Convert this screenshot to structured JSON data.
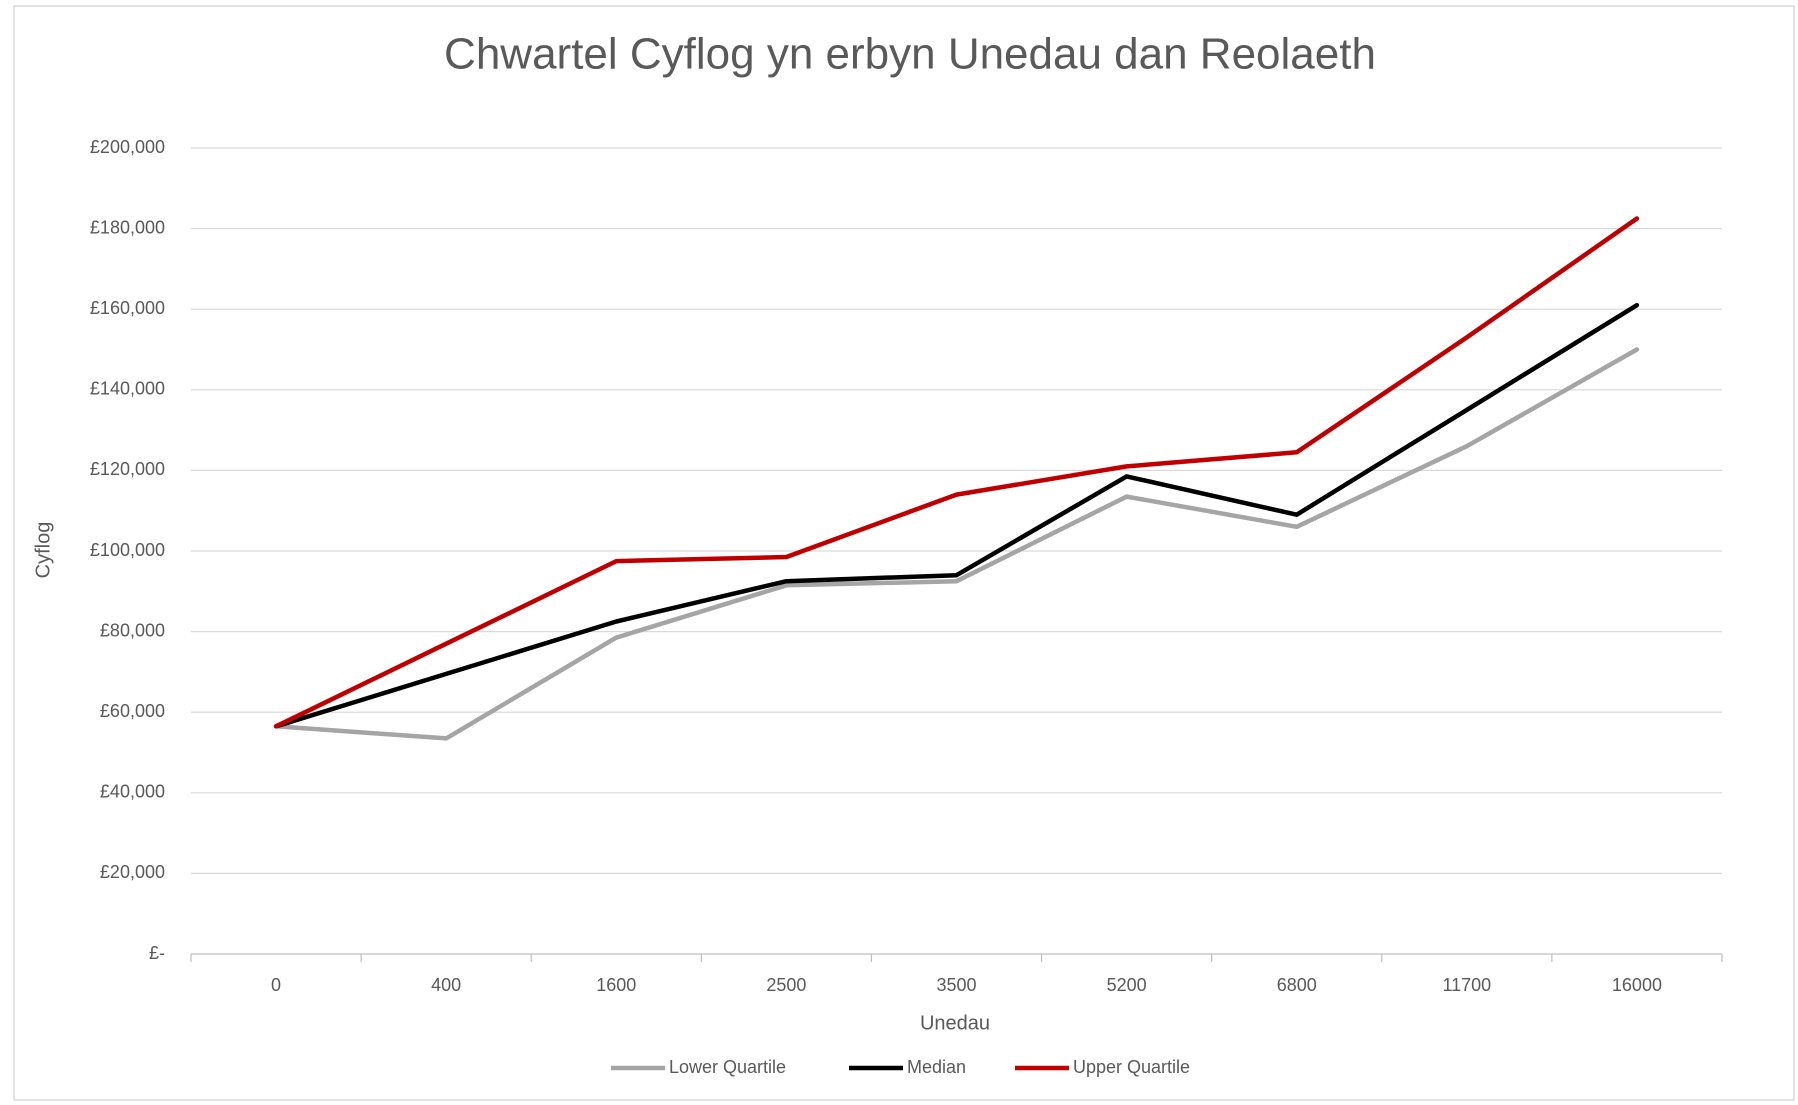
{
  "chart_data": {
    "type": "line",
    "title": "Chwartel Cyflog yn erbyn Unedau dan Reolaeth",
    "x_label": "Unedau",
    "y_label": "Cyflog",
    "categories": [
      "0",
      "400",
      "1600",
      "2500",
      "3500",
      "5200",
      "6800",
      "11700",
      "16000"
    ],
    "series": [
      {
        "name": "Lower Quartile",
        "color": "#a5a5a5",
        "values": [
          56500,
          53500,
          78500,
          91500,
          92500,
          113500,
          106000,
          126000,
          150000
        ]
      },
      {
        "name": "Median",
        "color": "#000000",
        "values": [
          56500,
          69500,
          82500,
          92500,
          94000,
          118500,
          109000,
          135000,
          161000
        ]
      },
      {
        "name": "Upper Quartile",
        "color": "#c00000",
        "values": [
          56500,
          77000,
          97500,
          98500,
          114000,
          121000,
          124500,
          153000,
          182500
        ]
      }
    ],
    "ylim": [
      0,
      200000
    ],
    "yticks": [
      {
        "value": 0,
        "label": "£-"
      },
      {
        "value": 20000,
        "label": "£20,000"
      },
      {
        "value": 40000,
        "label": "£40,000"
      },
      {
        "value": 60000,
        "label": "£60,000"
      },
      {
        "value": 80000,
        "label": "£80,000"
      },
      {
        "value": 100000,
        "label": "£100,000"
      },
      {
        "value": 120000,
        "label": "£120,000"
      },
      {
        "value": 140000,
        "label": "£140,000"
      },
      {
        "value": 160000,
        "label": "£160,000"
      },
      {
        "value": 180000,
        "label": "£180,000"
      },
      {
        "value": 200000,
        "label": "£200,000"
      }
    ],
    "grid": true,
    "legend": "bottom"
  }
}
